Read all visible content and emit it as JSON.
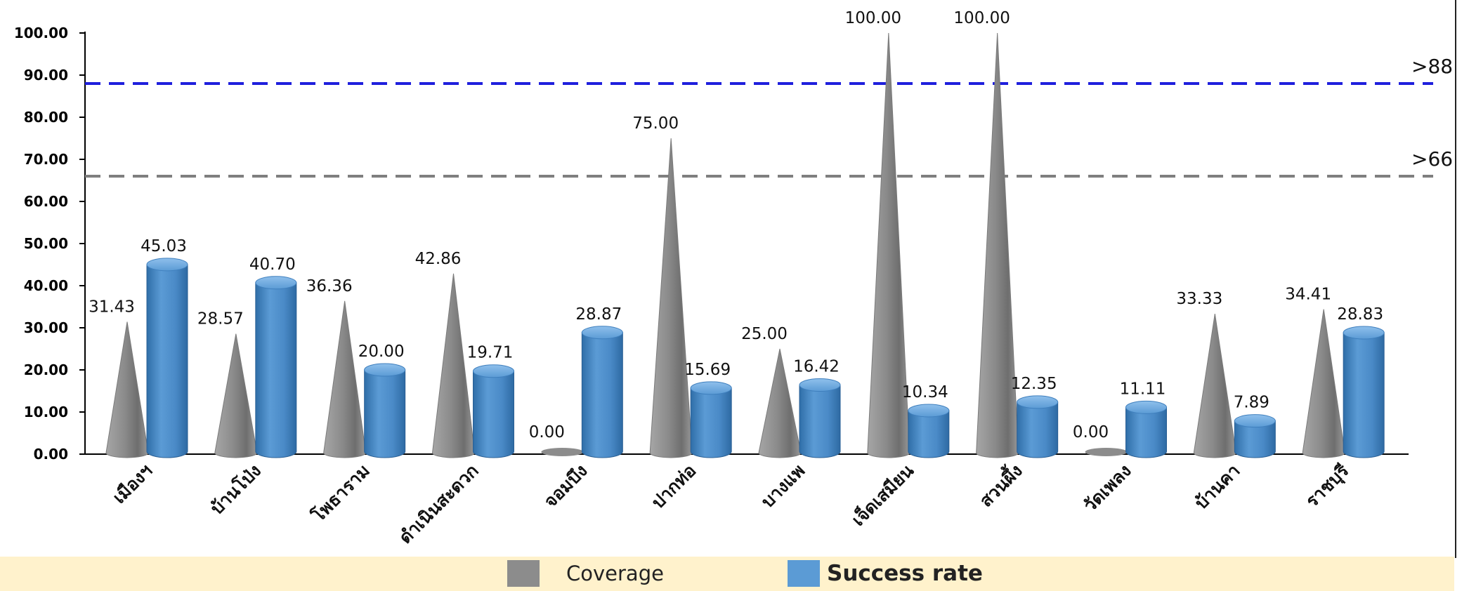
{
  "chart_data": {
    "type": "bar",
    "categories": [
      "เมืองฯ",
      "บ้านโป่ง",
      "โพธาราม",
      "ดำเนินสะดวก",
      "จอมบึง",
      "ปากท่อ",
      "บางแพ",
      "เจ็ดเสมียน",
      "สวนผึ้ง",
      "วัดเพลง",
      "บ้านคา",
      "ราชบุรี"
    ],
    "series": [
      {
        "name": "Coverage",
        "shape": "cone",
        "color": "#8c8c8c",
        "values": [
          31.43,
          28.57,
          36.36,
          42.86,
          0.0,
          75.0,
          25.0,
          100.0,
          100.0,
          0.0,
          33.33,
          34.41
        ],
        "labels": [
          "31.43",
          "28.57",
          "36.36",
          "42.86",
          "0.00",
          "75.00",
          "25.00",
          "100.00",
          "100.00",
          "0.00",
          "33.33",
          "34.41"
        ]
      },
      {
        "name": "Success rate",
        "shape": "cylinder",
        "color": "#5b9bd5",
        "values": [
          45.03,
          40.7,
          20.0,
          19.71,
          28.87,
          15.69,
          16.42,
          10.34,
          12.35,
          11.11,
          7.89,
          28.83
        ],
        "labels": [
          "45.03",
          "40.70",
          "20.00",
          "19.71",
          "28.87",
          "15.69",
          "16.42",
          "10.34",
          "12.35",
          "11.11",
          "7.89",
          "28.83"
        ]
      }
    ],
    "ylim": [
      0,
      100
    ],
    "yticks": [
      "0.00",
      "10.00",
      "20.00",
      "30.00",
      "40.00",
      "50.00",
      "60.00",
      "70.00",
      "80.00",
      "90.00",
      "100.00"
    ],
    "reference_lines": [
      {
        "value": 88,
        "label": ">88",
        "color": "#1f1fdd",
        "style": "dashed"
      },
      {
        "value": 66,
        "label": ">66",
        "color": "#7f7f7f",
        "style": "dashed"
      }
    ],
    "grid": false,
    "legend_position": "bottom",
    "legend": [
      {
        "label": "Coverage",
        "color": "#8c8c8c"
      },
      {
        "label": "Success rate",
        "color": "#5b9bd5"
      }
    ]
  }
}
